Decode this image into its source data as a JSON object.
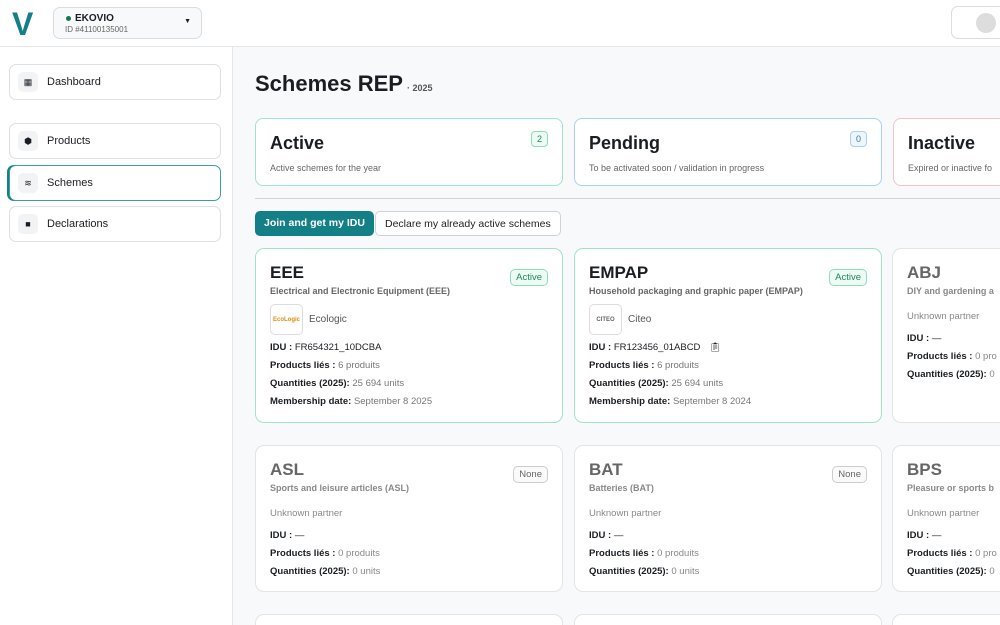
{
  "header": {
    "logo": "V",
    "org_name": "EKOVIO",
    "org_id": "ID #41100135001"
  },
  "sidebar": {
    "items": [
      {
        "label": "Dashboard",
        "icon": "grid-icon"
      },
      {
        "label": "Products",
        "icon": "box-icon"
      },
      {
        "label": "Schemes",
        "icon": "layers-icon",
        "active": true
      },
      {
        "label": "Declarations",
        "icon": "document-icon"
      }
    ]
  },
  "main": {
    "title": "Schemes REP",
    "year": "· 2025",
    "summary": [
      {
        "title": "Active",
        "desc": "Active schemes for the year",
        "count": "2",
        "color": "#3fc79a"
      },
      {
        "title": "Pending",
        "desc": "To be activated soon / validation in progress",
        "count": "0",
        "color": "#7cb6e6"
      },
      {
        "title": "Inactive",
        "desc": "Expired or inactive fo",
        "count": "",
        "color": "#f3b7bd"
      }
    ],
    "buttons": {
      "join": "Join and get my IDU",
      "declare": "Declare my already active schemes"
    },
    "labels": {
      "idu": "IDU :",
      "products": "Products liés :",
      "quantities": "Quantities (2025):",
      "membership": "Membership date:"
    },
    "cards": [
      {
        "code": "EEE",
        "name": "Electrical and Electronic Equipment (EEE)",
        "status": "Active",
        "partner": "Ecologic",
        "partner_logo": "EcoLogic",
        "idu": "FR654321_10DCBA",
        "products": "6 produits",
        "quantities": "25 694 units",
        "membership": "September 8 2025"
      },
      {
        "code": "EMPAP",
        "name": "Household packaging and graphic paper (EMPAP)",
        "status": "Active",
        "partner": "Citeo",
        "partner_logo": "CITEO",
        "idu": "FR123456_01ABCD",
        "products": "6 produits",
        "quantities": "25 694 units",
        "membership": "September 8 2024"
      },
      {
        "code": "ABJ",
        "name": "DIY and gardening a",
        "status": "",
        "partner": "Unknown partner",
        "idu": "—",
        "products": "0 pro",
        "quantities": "0"
      },
      {
        "code": "ASL",
        "name": "Sports and leisure articles (ASL)",
        "status": "None",
        "partner": "Unknown partner",
        "idu": "—",
        "products": "0 produits",
        "quantities": "0 units"
      },
      {
        "code": "BAT",
        "name": "Batteries (BAT)",
        "status": "None",
        "partner": "Unknown partner",
        "idu": "—",
        "products": "0 produits",
        "quantities": "0 units"
      },
      {
        "code": "BPS",
        "name": "Pleasure or sports b",
        "status": "",
        "partner": "Unknown partner",
        "idu": "—",
        "products": "0 pro",
        "quantities": "0"
      }
    ]
  }
}
